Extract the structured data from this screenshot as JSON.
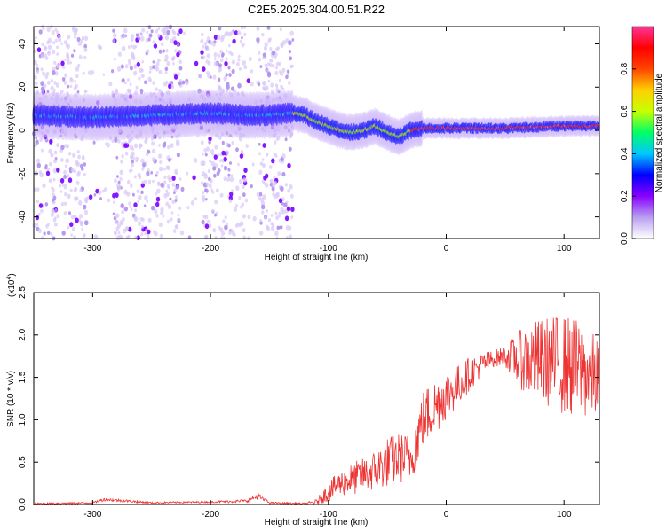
{
  "title": "C2E5.2025.304.00.51.R22",
  "chart_data": [
    {
      "type": "heatmap",
      "xlabel": "Height of straight line (km)",
      "ylabel": "Frequency (Hz)",
      "xlim": [
        -350,
        130
      ],
      "ylim": [
        -50,
        48
      ],
      "xticks": [
        -300,
        -200,
        -100,
        0,
        100
      ],
      "yticks": [
        -40,
        -20,
        0,
        20,
        40
      ],
      "colorbar": {
        "label": "Normalized spectral amplitude",
        "range": [
          0,
          1
        ],
        "ticks": [
          "0.0",
          "0.2",
          "0.4",
          "0.6",
          "0.8"
        ],
        "colormap": [
          "#ffffff",
          "#b89ff0",
          "#8800ff",
          "#0000ff",
          "#00c8ff",
          "#00ff66",
          "#c8ff00",
          "#ffd000",
          "#ff4400",
          "#ff0000",
          "#ff3399"
        ]
      },
      "ridge": {
        "description_points_x": [
          -350,
          -300,
          -250,
          -200,
          -170,
          -150,
          -130,
          -120,
          -110,
          -100,
          -90,
          -80,
          -70,
          -60,
          -50,
          -40,
          -30,
          -20,
          0,
          50,
          100,
          130
        ],
        "frequency": [
          7,
          6,
          7,
          8,
          7,
          7,
          8,
          7,
          4,
          2,
          0,
          -1,
          0,
          2,
          -1,
          -3,
          0,
          1,
          1,
          1,
          2,
          2
        ]
      },
      "noise_region": {
        "x_range": [
          -350,
          -130
        ],
        "y_range": [
          -50,
          48
        ]
      }
    },
    {
      "type": "line",
      "xlabel": "Height of straight line (km)",
      "ylabel": "SNR (10 * v/v)",
      "multiplier_label": "(x10",
      "multiplier_exp": "4",
      "multiplier_close": ")",
      "xlim": [
        -350,
        130
      ],
      "ylim": [
        0,
        2.5
      ],
      "xticks": [
        -300,
        -200,
        -100,
        0,
        100
      ],
      "yticks": [
        "0.0",
        "0.5",
        "1.0",
        "1.5",
        "2.0",
        "2.5"
      ],
      "series": [
        {
          "color": "#ee3333",
          "envelope_x": [
            -350,
            -300,
            -290,
            -250,
            -200,
            -170,
            -160,
            -150,
            -120,
            -110,
            -100,
            -90,
            -80,
            -70,
            -60,
            -50,
            -40,
            -30,
            -20,
            -10,
            0,
            10,
            20,
            30,
            40,
            50,
            60,
            70,
            80,
            90,
            100,
            110,
            120,
            130
          ],
          "envelope_y": [
            0.01,
            0.02,
            0.06,
            0.02,
            0.03,
            0.04,
            0.1,
            0.02,
            0.01,
            0.03,
            0.15,
            0.25,
            0.3,
            0.35,
            0.4,
            0.5,
            0.55,
            0.55,
            1.0,
            1.15,
            1.3,
            1.4,
            1.55,
            1.65,
            1.72,
            1.75,
            1.72,
            1.7,
            1.7,
            1.68,
            1.65,
            1.6,
            1.55,
            1.5
          ],
          "spread_y": [
            0.01,
            0.01,
            0.02,
            0.01,
            0.01,
            0.02,
            0.04,
            0.01,
            0.01,
            0.03,
            0.12,
            0.15,
            0.2,
            0.2,
            0.25,
            0.3,
            0.3,
            0.3,
            0.35,
            0.35,
            0.3,
            0.25,
            0.2,
            0.15,
            0.1,
            0.12,
            0.3,
            0.45,
            0.5,
            0.55,
            0.6,
            0.6,
            0.55,
            0.5
          ]
        }
      ]
    }
  ]
}
